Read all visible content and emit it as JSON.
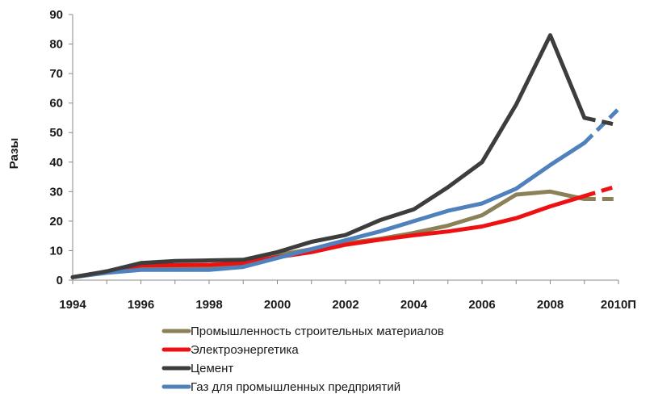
{
  "chart_data": {
    "type": "line",
    "title": "",
    "xlabel": "",
    "ylabel": "Разы",
    "ylim": [
      0,
      90
    ],
    "yticks": [
      "0",
      "10",
      "20",
      "30",
      "40",
      "50",
      "60",
      "70",
      "80",
      "90"
    ],
    "x": [
      "1994",
      "1995",
      "1996",
      "1997",
      "1998",
      "1999",
      "2000",
      "2001",
      "2002",
      "2003",
      "2004",
      "2005",
      "2006",
      "2007",
      "2008",
      "2009",
      "2010П"
    ],
    "xticks": [
      "1994",
      "1996",
      "1998",
      "2000",
      "2002",
      "2004",
      "2006",
      "2008",
      "2010П"
    ],
    "grid": false,
    "legend_position": "bottom",
    "forecast_from": "2009",
    "series": [
      {
        "name": "Промышленность строительных материалов",
        "color": "#8B8158",
        "values": [
          1,
          2.8,
          4.5,
          4.6,
          4.8,
          5.5,
          8.5,
          10.5,
          12.5,
          14,
          16,
          18.5,
          22,
          29,
          30,
          27.5,
          27.5
        ]
      },
      {
        "name": "Электроэнергетика",
        "color": "#EE1111",
        "values": [
          1,
          2.8,
          5,
          5.1,
          5.2,
          5.8,
          7.8,
          9.5,
          12,
          13.7,
          15.2,
          16.5,
          18.2,
          21,
          25,
          28.5,
          32
        ]
      },
      {
        "name": "Цемент",
        "color": "#3D3D3D",
        "values": [
          1,
          3,
          5.8,
          6.5,
          6.7,
          6.9,
          9.5,
          13,
          15.3,
          20.3,
          24,
          31.5,
          40,
          59.5,
          83,
          55,
          52.5
        ]
      },
      {
        "name": "Газ для промышленных предприятий",
        "color": "#4F81BD",
        "values": [
          1,
          2.5,
          3.5,
          3.5,
          3.5,
          4.5,
          7.5,
          10.5,
          13.5,
          16.5,
          20,
          23.5,
          26,
          31,
          39,
          46.5,
          58
        ]
      }
    ]
  }
}
